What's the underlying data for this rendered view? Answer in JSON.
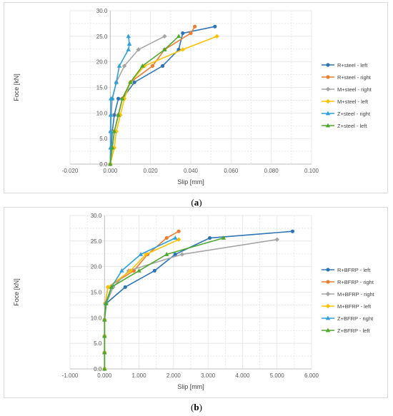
{
  "captions": {
    "a_open": "(",
    "a_label": "a",
    "a_close": ")",
    "b_open": "(",
    "b_label": "b",
    "b_close": ")"
  },
  "colors": {
    "blue": "#2e75b6",
    "orange": "#ed7d31",
    "gray": "#a5a5a5",
    "yellow": "#ffc000",
    "lightblue": "#2fa1da",
    "green": "#4ea72e",
    "grid": "#d9d9d9"
  },
  "chart_data": [
    {
      "id": "a",
      "type": "line",
      "xlabel": "Slip [mm]",
      "ylabel": "Foce [kN]",
      "xlim": [
        -0.02,
        0.1
      ],
      "ylim": [
        0,
        30
      ],
      "xticks": [
        "-0.020",
        "0.000",
        "0.020",
        "0.040",
        "0.060",
        "0.080",
        "0.100"
      ],
      "yticks": [
        "0.0",
        "5.0",
        "10.0",
        "15.0",
        "20.0",
        "25.0",
        "30.0"
      ],
      "grid": true,
      "legend": "right",
      "series": [
        {
          "name": "R+steel - left",
          "color": "#2e75b6",
          "marker": "circle",
          "x": [
            0,
            0.0005,
            0.001,
            0.002,
            0.004,
            0.006,
            0.012,
            0.026,
            0.034,
            0.036,
            0.052
          ],
          "y": [
            0,
            3.2,
            6.4,
            9.6,
            12.8,
            12.8,
            16,
            19.2,
            22.4,
            25.6,
            26.9
          ]
        },
        {
          "name": "R+steel - right",
          "color": "#ed7d31",
          "marker": "circle",
          "x": [
            0,
            0.001,
            0.002,
            0.004,
            0.006,
            0.01,
            0.021,
            0.027,
            0.04,
            0.042
          ],
          "y": [
            0,
            3.2,
            6.4,
            9.6,
            12.8,
            16,
            19.2,
            22.4,
            25.6,
            26.9
          ]
        },
        {
          "name": "M+steel - right",
          "color": "#a5a5a5",
          "marker": "diamond",
          "x": [
            0,
            0.0003,
            0.0005,
            0.001,
            0.003,
            0.007,
            0.014,
            0.027
          ],
          "y": [
            0,
            6.4,
            9.6,
            12.8,
            16,
            19.2,
            22.4,
            25
          ]
        },
        {
          "name": "M+steel - left",
          "color": "#ffc000",
          "marker": "diamond",
          "x": [
            0,
            0.002,
            0.003,
            0.005,
            0.007,
            0.01,
            0.017,
            0.036,
            0.053
          ],
          "y": [
            0,
            3.2,
            6.4,
            9.6,
            12.8,
            16,
            19.2,
            22.4,
            25
          ]
        },
        {
          "name": "Z+steel - right",
          "color": "#2fa1da",
          "marker": "triangle",
          "x": [
            0,
            0.0001,
            0.0001,
            0.0002,
            0.0003,
            0.001,
            0.003,
            0.0045,
            0.009,
            0.0095,
            0.009
          ],
          "y": [
            0,
            3.2,
            6.4,
            9.6,
            12.8,
            12.8,
            16,
            19.2,
            22.4,
            23.5,
            25
          ]
        },
        {
          "name": "Z+steel - left",
          "color": "#4ea72e",
          "marker": "triangle",
          "x": [
            0,
            0.001,
            0.002,
            0.004,
            0.006,
            0.01,
            0.016,
            0.027,
            0.034
          ],
          "y": [
            0,
            3.2,
            6.4,
            9.6,
            12.8,
            16,
            19.2,
            22.4,
            25
          ]
        }
      ]
    },
    {
      "id": "b",
      "type": "line",
      "xlabel": "Slip [mm]",
      "ylabel": "Foce [kN]",
      "xlim": [
        -1,
        6
      ],
      "ylim": [
        0,
        30
      ],
      "xticks": [
        "-1.000",
        "0.000",
        "1.000",
        "2.000",
        "3.000",
        "4.000",
        "5.000",
        "6.000"
      ],
      "yticks": [
        "0.0",
        "5.0",
        "10.0",
        "15.0",
        "20.0",
        "25.0",
        "30.0"
      ],
      "grid": true,
      "legend": "right",
      "series": [
        {
          "name": "R+BFRP - left",
          "color": "#2e75b6",
          "marker": "circle",
          "x": [
            0,
            0,
            0,
            0,
            0.02,
            0.05,
            0.6,
            1.45,
            2.05,
            3.05,
            5.45
          ],
          "y": [
            0,
            3.2,
            6.4,
            9.6,
            12.8,
            12.8,
            16,
            19.2,
            22.4,
            25.6,
            26.9
          ]
        },
        {
          "name": "R+BFRP - right",
          "color": "#ed7d31",
          "marker": "circle",
          "x": [
            0,
            0,
            0,
            0,
            0.02,
            0.1,
            0.85,
            1.25,
            1.8,
            2.15
          ],
          "y": [
            0,
            3.2,
            6.4,
            9.6,
            12.8,
            16,
            19.2,
            22.4,
            25.6,
            26.9
          ]
        },
        {
          "name": "M+BFRP - right",
          "color": "#a5a5a5",
          "marker": "diamond",
          "x": [
            0,
            0,
            0,
            0,
            0.05,
            0.25,
            0.7,
            2.25,
            5.0
          ],
          "y": [
            0,
            3.2,
            6.4,
            9.6,
            12.8,
            16,
            19.2,
            22.4,
            25.3
          ]
        },
        {
          "name": "M+BFRP - left",
          "color": "#ffc000",
          "marker": "diamond",
          "x": [
            0,
            0,
            0,
            0,
            0.02,
            0.1,
            0.75,
            1.2,
            2.15
          ],
          "y": [
            0,
            3.2,
            6.4,
            9.6,
            12.8,
            16,
            19.2,
            22.4,
            25.3
          ]
        },
        {
          "name": "Z+BFRP - right",
          "color": "#2fa1da",
          "marker": "triangle",
          "x": [
            0,
            0,
            0,
            0,
            0.03,
            0.2,
            0.5,
            1.05,
            2.05
          ],
          "y": [
            0,
            3.2,
            6.4,
            9.6,
            12.8,
            16,
            19.2,
            22.4,
            25.6
          ]
        },
        {
          "name": "Z+BFRP - left",
          "color": "#4ea72e",
          "marker": "triangle",
          "x": [
            0,
            0,
            0,
            0,
            0.05,
            0.2,
            1.0,
            1.8,
            3.45
          ],
          "y": [
            0,
            3.2,
            6.4,
            9.6,
            12.8,
            16,
            19.2,
            22.4,
            25.6
          ]
        }
      ]
    }
  ]
}
